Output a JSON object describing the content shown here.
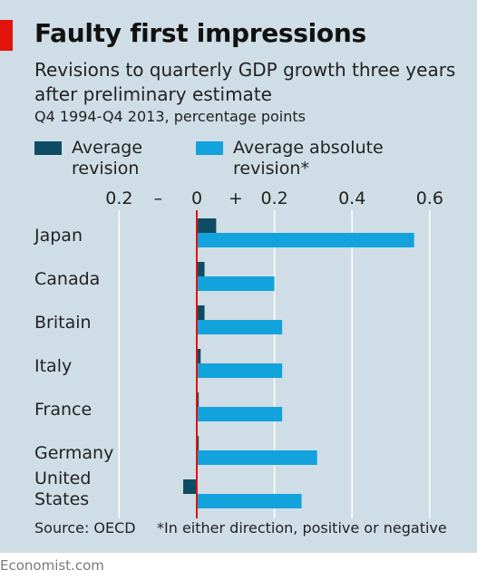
{
  "header": {
    "title": "Faulty first impressions",
    "subtitle": "Revisions to quarterly GDP growth three years after preliminary estimate",
    "note": "Q4 1994-Q4 2013, percentage points"
  },
  "legend": [
    {
      "label_line1": "Average",
      "label_line2": "revision",
      "color": "#0e4c64"
    },
    {
      "label_line1": "Average absolute",
      "label_line2": "revision*",
      "color": "#12a3dc"
    }
  ],
  "footer": {
    "source": "Source: OECD",
    "footnote": "*In either direction, positive or negative",
    "brand": "Economist.com"
  },
  "colors": {
    "background": "#cfdde6",
    "zero_line": "#e3120b",
    "accent": "#e3120b"
  },
  "chart_data": {
    "type": "bar",
    "orientation": "horizontal",
    "categories": [
      "Japan",
      "Canada",
      "Britain",
      "Italy",
      "France",
      "Germany",
      "United States"
    ],
    "series": [
      {
        "name": "Average revision",
        "values": [
          0.05,
          0.02,
          0.02,
          0.01,
          0.005,
          0.005,
          -0.035
        ]
      },
      {
        "name": "Average absolute revision*",
        "values": [
          0.56,
          0.2,
          0.22,
          0.22,
          0.22,
          0.31,
          0.27
        ]
      }
    ],
    "x_tick_labels": [
      "0.2",
      "–",
      "0",
      "+",
      "0.2",
      "0.4",
      "0.6"
    ],
    "xlim": [
      -0.2,
      0.6
    ],
    "grid": true
  }
}
